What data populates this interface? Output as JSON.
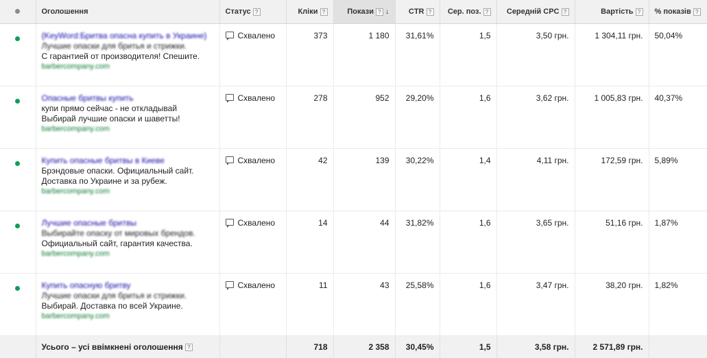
{
  "header": {
    "ad": "Оголошення",
    "status": "Статус",
    "clicks": "Кліки",
    "impressions": "Покази",
    "ctr": "CTR",
    "avg_pos": "Сер. поз.",
    "avg_cpc": "Середній CPC",
    "cost": "Вартість",
    "impr_share": "% показів",
    "help": "?",
    "sort_arrow": "↓"
  },
  "rows": [
    {
      "headline": "{KeyWord:Бритва опасна купить в Украине}",
      "desc1": "Лучшие опаски для бритья и стрижки.",
      "desc2": "С гарантией от производителя! Спешите.",
      "url": "barbercompany.com",
      "status": "Схвалено",
      "clicks": "373",
      "impressions": "1 180",
      "ctr": "31,61%",
      "avg_pos": "1,5",
      "avg_cpc": "3,50 грн.",
      "cost": "1 304,11 грн.",
      "impr_share": "50,04%"
    },
    {
      "headline": "Опасные бритвы купить",
      "desc1": "купи прямо сейчас - не откладывай",
      "desc2": "Выбирай лучшие опаски и шаветты!",
      "url": "barbercompany.com",
      "status": "Схвалено",
      "clicks": "278",
      "impressions": "952",
      "ctr": "29,20%",
      "avg_pos": "1,6",
      "avg_cpc": "3,62 грн.",
      "cost": "1 005,83 грн.",
      "impr_share": "40,37%"
    },
    {
      "headline": "Купить опасные бритвы в Киеве",
      "desc1": "Брэндовые опаски. Официальный сайт.",
      "desc2": "Доставка по Украине и за рубеж.",
      "url": "barbercompany.com",
      "status": "Схвалено",
      "clicks": "42",
      "impressions": "139",
      "ctr": "30,22%",
      "avg_pos": "1,4",
      "avg_cpc": "4,11 грн.",
      "cost": "172,59 грн.",
      "impr_share": "5,89%"
    },
    {
      "headline": "Лучшие опасные бритвы",
      "desc1": "Выбирайте опаску от мировых брендов.",
      "desc2": "Официальный сайт, гарантия качества.",
      "url": "barbercompany.com",
      "status": "Схвалено",
      "clicks": "14",
      "impressions": "44",
      "ctr": "31,82%",
      "avg_pos": "1,6",
      "avg_cpc": "3,65 грн.",
      "cost": "51,16 грн.",
      "impr_share": "1,87%"
    },
    {
      "headline": "Купить опасную бритву",
      "desc1": "Лучшие опаски для бритья и стрижки.",
      "desc2": "Выбирай. Доставка по всей Украине.",
      "url": "barbercompany.com",
      "status": "Схвалено",
      "clicks": "11",
      "impressions": "43",
      "ctr": "25,58%",
      "avg_pos": "1,6",
      "avg_cpc": "3,47 грн.",
      "cost": "38,20 грн.",
      "impr_share": "1,82%"
    }
  ],
  "total": {
    "label": "Усього – усі ввімкнені оголошення",
    "clicks": "718",
    "impressions": "2 358",
    "ctr": "30,45%",
    "avg_pos": "1,5",
    "avg_cpc": "3,58 грн.",
    "cost": "2 571,89 грн.",
    "impr_share": ""
  },
  "colors": {
    "enabled_dot": "#0f9d58",
    "header_bg": "#f1f1f1",
    "headline_link": "#1a0dab",
    "display_url": "#0a7b32"
  }
}
